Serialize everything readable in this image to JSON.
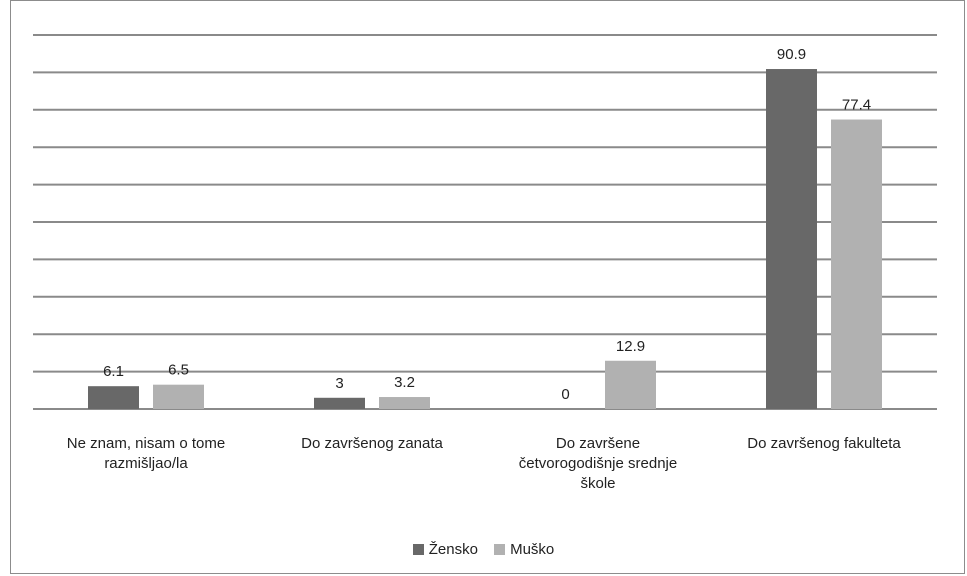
{
  "chart_data": {
    "type": "bar",
    "categories": [
      "Ne znam, nisam o tome razmišljao/la",
      "Do završenog zanata",
      "Do završene četvorogodišnje srednje škole",
      "Do završenog fakulteta"
    ],
    "series": [
      {
        "name": "Žensko",
        "values": [
          6.1,
          3,
          0,
          90.9
        ],
        "color": "#686868"
      },
      {
        "name": "Muško",
        "values": [
          6.5,
          3.2,
          12.9,
          77.4
        ],
        "color": "#b1b1b1"
      }
    ],
    "ylim": [
      0,
      100
    ],
    "grid": true,
    "gridline_color": "#8a8a8a",
    "legend": "bottom",
    "data_labels": true
  },
  "category_label_lines": [
    [
      "Ne znam, nisam o tome",
      "razmišljao/la"
    ],
    [
      "Do završenog zanata"
    ],
    [
      "Do završene",
      "četvorogodišnje srednje",
      "škole"
    ],
    [
      "Do završenog fakulteta"
    ]
  ]
}
